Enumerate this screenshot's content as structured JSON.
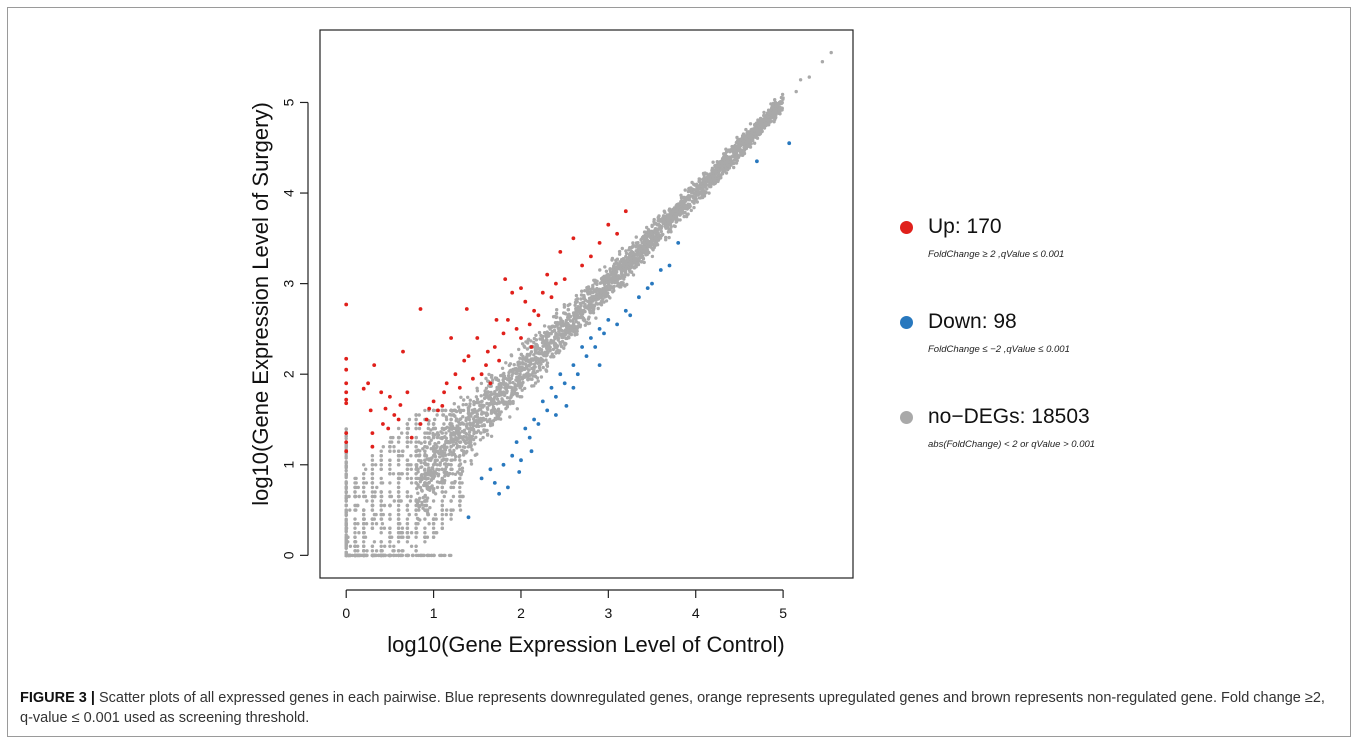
{
  "chart_data": {
    "type": "scatter",
    "title": "",
    "xlabel": "log10(Gene Expression Level of Control)",
    "ylabel": "log10(Gene Expression Level of Surgery)",
    "xlim": [
      -0.3,
      5.8
    ],
    "ylim": [
      -0.25,
      5.8
    ],
    "x_ticks": [
      "0",
      "1",
      "2",
      "3",
      "4",
      "5"
    ],
    "y_ticks": [
      "0",
      "1",
      "2",
      "3",
      "4",
      "5"
    ],
    "grid": false,
    "legend_position": "right",
    "series": [
      {
        "name": "Up: 170",
        "criteria": "FoldChange ≥ 2 ,qValue ≤ 0.001",
        "color": "#e0201b",
        "points": [
          [
            0,
            2.77
          ],
          [
            0,
            2.17
          ],
          [
            0,
            2.05
          ],
          [
            0,
            1.9
          ],
          [
            0,
            1.8
          ],
          [
            0,
            1.72
          ],
          [
            0,
            1.68
          ],
          [
            0,
            1.35
          ],
          [
            0,
            1.25
          ],
          [
            0,
            1.15
          ],
          [
            0.2,
            1.84
          ],
          [
            0.25,
            1.9
          ],
          [
            0.28,
            1.6
          ],
          [
            0.3,
            1.35
          ],
          [
            0.3,
            1.2
          ],
          [
            0.32,
            2.1
          ],
          [
            0.4,
            1.8
          ],
          [
            0.45,
            1.62
          ],
          [
            0.48,
            1.4
          ],
          [
            0.55,
            1.55
          ],
          [
            0.6,
            1.5
          ],
          [
            0.62,
            1.66
          ],
          [
            0.65,
            2.25
          ],
          [
            0.7,
            1.8
          ],
          [
            0.75,
            1.3
          ],
          [
            0.85,
            1.45
          ],
          [
            0.85,
            2.72
          ],
          [
            0.95,
            1.62
          ],
          [
            1.0,
            1.7
          ],
          [
            1.05,
            1.6
          ],
          [
            1.1,
            1.65
          ],
          [
            1.15,
            1.9
          ],
          [
            1.2,
            2.4
          ],
          [
            1.25,
            2.0
          ],
          [
            1.3,
            1.85
          ],
          [
            1.35,
            2.15
          ],
          [
            1.4,
            2.2
          ],
          [
            1.45,
            1.95
          ],
          [
            1.5,
            2.4
          ],
          [
            1.55,
            2.0
          ],
          [
            1.6,
            2.1
          ],
          [
            1.65,
            1.9
          ],
          [
            1.7,
            2.3
          ],
          [
            1.75,
            2.15
          ],
          [
            1.8,
            2.45
          ],
          [
            1.82,
            3.05
          ],
          [
            1.85,
            2.6
          ],
          [
            1.9,
            2.9
          ],
          [
            1.95,
            2.5
          ],
          [
            2.0,
            2.95
          ],
          [
            2.05,
            2.8
          ],
          [
            2.1,
            2.55
          ],
          [
            2.15,
            2.7
          ],
          [
            2.2,
            2.65
          ],
          [
            2.25,
            2.9
          ],
          [
            2.3,
            3.1
          ],
          [
            2.35,
            2.85
          ],
          [
            2.4,
            3.0
          ],
          [
            2.45,
            3.35
          ],
          [
            2.5,
            3.05
          ],
          [
            2.6,
            3.5
          ],
          [
            2.7,
            3.2
          ],
          [
            2.8,
            3.3
          ],
          [
            2.9,
            3.45
          ],
          [
            3.0,
            3.65
          ],
          [
            3.1,
            3.55
          ],
          [
            3.2,
            3.8
          ],
          [
            1.38,
            2.72
          ],
          [
            1.62,
            2.25
          ],
          [
            2.0,
            2.4
          ],
          [
            2.12,
            2.3
          ],
          [
            1.72,
            2.6
          ],
          [
            0.5,
            1.75
          ],
          [
            0.42,
            1.45
          ],
          [
            0.92,
            1.5
          ],
          [
            1.12,
            1.8
          ]
        ]
      },
      {
        "name": "Down: 98",
        "criteria": "FoldChange ≤ −2 ,qValue ≤ 0.001",
        "color": "#2878be",
        "points": [
          [
            1.4,
            0.42
          ],
          [
            1.55,
            0.85
          ],
          [
            1.65,
            0.95
          ],
          [
            1.7,
            0.8
          ],
          [
            1.75,
            0.68
          ],
          [
            1.8,
            1.0
          ],
          [
            1.85,
            0.75
          ],
          [
            1.9,
            1.1
          ],
          [
            1.95,
            1.25
          ],
          [
            2.0,
            1.05
          ],
          [
            2.05,
            1.4
          ],
          [
            2.1,
            1.3
          ],
          [
            2.15,
            1.5
          ],
          [
            2.2,
            1.45
          ],
          [
            2.25,
            1.7
          ],
          [
            2.3,
            1.6
          ],
          [
            2.35,
            1.85
          ],
          [
            2.4,
            1.75
          ],
          [
            2.45,
            2.0
          ],
          [
            2.5,
            1.9
          ],
          [
            2.6,
            2.1
          ],
          [
            2.65,
            2.0
          ],
          [
            2.7,
            2.3
          ],
          [
            2.75,
            2.2
          ],
          [
            2.8,
            2.4
          ],
          [
            2.85,
            2.3
          ],
          [
            2.9,
            2.5
          ],
          [
            2.95,
            2.45
          ],
          [
            3.0,
            2.6
          ],
          [
            3.1,
            2.55
          ],
          [
            3.2,
            2.7
          ],
          [
            3.25,
            2.65
          ],
          [
            3.35,
            2.85
          ],
          [
            3.45,
            2.95
          ],
          [
            3.5,
            3.0
          ],
          [
            3.6,
            3.15
          ],
          [
            3.7,
            3.2
          ],
          [
            3.8,
            3.45
          ],
          [
            4.7,
            4.35
          ],
          [
            5.07,
            4.55
          ],
          [
            2.52,
            1.65
          ],
          [
            2.12,
            1.15
          ],
          [
            1.98,
            0.92
          ],
          [
            2.4,
            1.55
          ],
          [
            2.6,
            1.85
          ],
          [
            2.9,
            2.1
          ]
        ]
      },
      {
        "name": "no−DEGs: 18503",
        "criteria": "abs(FoldChange) < 2  or qValue > 0.001",
        "color": "#a9a9a9",
        "points": []
      }
    ]
  },
  "caption": {
    "label": "FIGURE 3 |",
    "text": " Scatter plots of all expressed genes in each pairwise. Blue represents downregulated genes, orange represents upregulated genes and brown represents non-regulated gene. Fold change ≥2, q-value ≤ 0.001 used as screening threshold."
  }
}
